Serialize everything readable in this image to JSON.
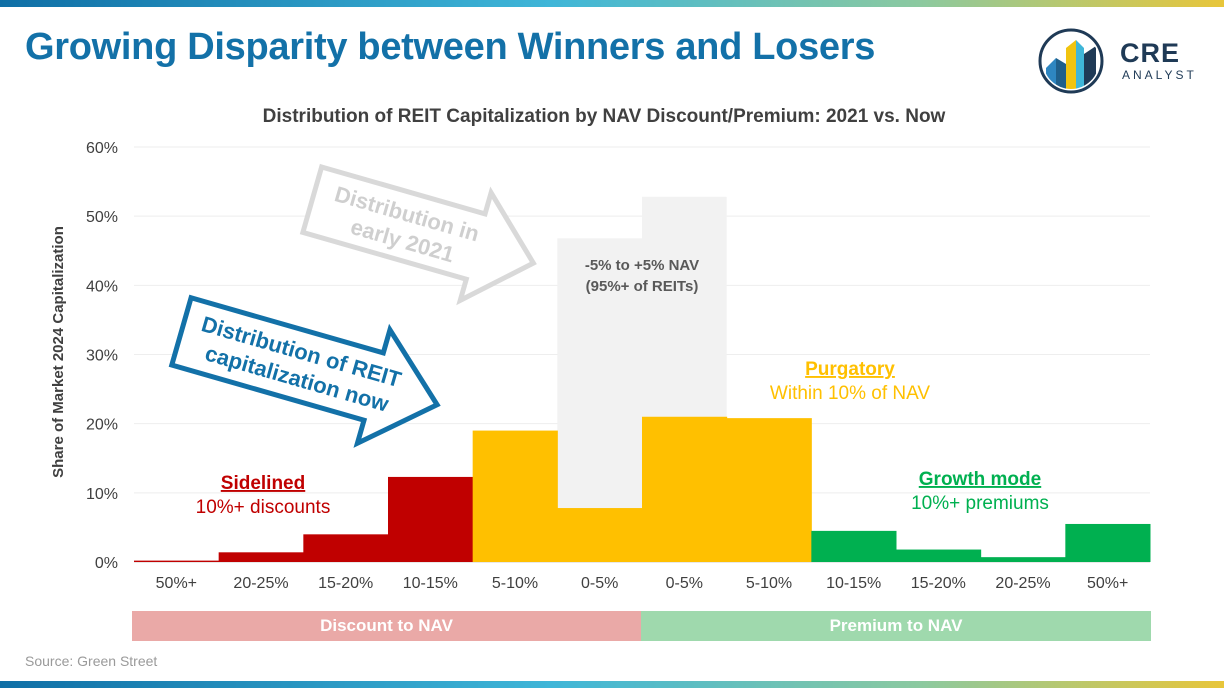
{
  "title": "Growing Disparity between Winners and Losers",
  "logo": {
    "line1": "CRE",
    "line2": "ANALYST"
  },
  "source": "Source: Green Street",
  "chart_data": {
    "type": "bar",
    "title": "Distribution of REIT Capitalization by NAV Discount/Premium: 2021 vs. Now",
    "ylabel": "Share of Market 2024 Capitalization",
    "xlabel": "",
    "ylim": [
      0,
      60
    ],
    "yticks": [
      "0%",
      "10%",
      "20%",
      "30%",
      "40%",
      "50%",
      "60%"
    ],
    "yticks_values": [
      0,
      10,
      20,
      30,
      40,
      50,
      60
    ],
    "grid": true,
    "categories": [
      "50%+",
      "20-25%",
      "15-20%",
      "10-15%",
      "5-10%",
      "0-5%",
      "0-5%",
      "5-10%",
      "10-15%",
      "15-20%",
      "20-25%",
      "50%+"
    ],
    "groups": [
      {
        "label": "Discount to NAV",
        "color": "#eaa9a7"
      },
      {
        "label": "Premium to NAV",
        "color": "#9fd9ad"
      }
    ],
    "series": [
      {
        "name": "Distribution of REIT capitalization now",
        "values": [
          0.2,
          1.4,
          4.0,
          12.3,
          19.0,
          7.8,
          21.0,
          20.8,
          4.5,
          1.8,
          0.7,
          5.5
        ],
        "colors": [
          "#c00000",
          "#c00000",
          "#c00000",
          "#c00000",
          "#ffc000",
          "#ffc000",
          "#ffc000",
          "#ffc000",
          "#00b050",
          "#00b050",
          "#00b050",
          "#00b050"
        ]
      },
      {
        "name": "Distribution in early 2021",
        "values": [
          null,
          null,
          null,
          null,
          null,
          46.8,
          52.8,
          null,
          null,
          null,
          null,
          null
        ],
        "color": "#f2f2f2"
      }
    ],
    "annotations": {
      "early2021_arrow": "Distribution in early 2021",
      "now_arrow": "Distribution of REIT capitalization now",
      "band_line1": "-5% to +5% NAV",
      "band_line2": "(95%+ of REITs)",
      "sidelined_title": "Sidelined",
      "sidelined_sub": "10%+ discounts",
      "purgatory_title": "Purgatory",
      "purgatory_sub": "Within 10% of NAV",
      "growth_title": "Growth mode",
      "growth_sub": "10%+ premiums"
    }
  }
}
